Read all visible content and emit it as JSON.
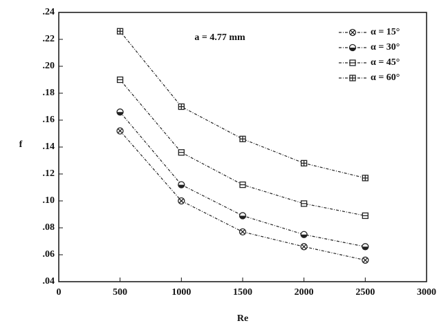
{
  "chart_data": {
    "type": "line",
    "x_label": "Re",
    "y_label": "f",
    "annotation": "a = 4.77 mm",
    "x": [
      500,
      1000,
      1500,
      2000,
      2500
    ],
    "series": [
      {
        "name": "α = 15°",
        "color": "#222222",
        "values": [
          0.152,
          0.1,
          0.077,
          0.066,
          0.056
        ]
      },
      {
        "name": "α = 30°",
        "color": "#222222",
        "values": [
          0.166,
          0.112,
          0.089,
          0.075,
          0.066
        ]
      },
      {
        "name": "α = 45°",
        "color": "#222222",
        "values": [
          0.19,
          0.136,
          0.112,
          0.098,
          0.089
        ]
      },
      {
        "name": "α = 60°",
        "color": "#222222",
        "values": [
          0.226,
          0.17,
          0.146,
          0.128,
          0.117
        ]
      }
    ],
    "xlim": [
      0,
      3000
    ],
    "xticks": [
      0,
      500,
      1000,
      1500,
      2000,
      2500,
      3000
    ],
    "ylim": [
      0.04,
      0.24
    ],
    "yticks": [
      {
        "value": 0.04,
        "label": ".04"
      },
      {
        "value": 0.06,
        "label": ".06"
      },
      {
        "value": 0.08,
        "label": ".08"
      },
      {
        "value": 0.1,
        "label": ".10"
      },
      {
        "value": 0.12,
        "label": ".12"
      },
      {
        "value": 0.14,
        "label": ".14"
      },
      {
        "value": 0.16,
        "label": ".16"
      },
      {
        "value": 0.18,
        "label": ".18"
      },
      {
        "value": 0.2,
        "label": ".20"
      },
      {
        "value": 0.22,
        "label": ".22"
      },
      {
        "value": 0.24,
        "label": ".24"
      }
    ],
    "grid": false,
    "legend": "upper right"
  }
}
